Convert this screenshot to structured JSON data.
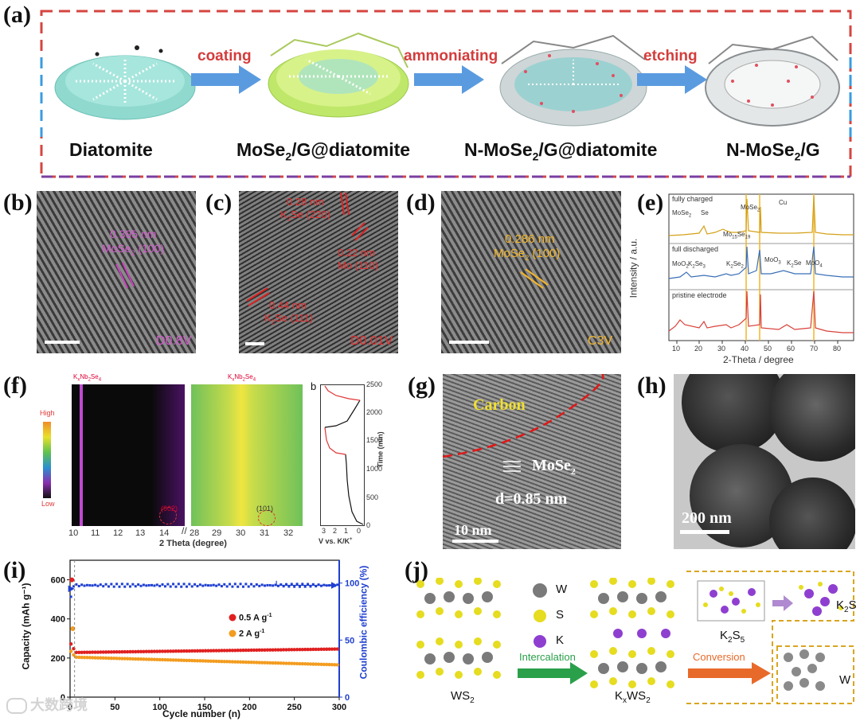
{
  "panel_labels": {
    "a": "(a)",
    "b": "(b)",
    "c": "(c)",
    "d": "(d)",
    "e": "(e)",
    "f": "(f)",
    "g": "(g)",
    "h": "(h)",
    "i": "(i)",
    "j": "(j)"
  },
  "panel_a": {
    "arrows": [
      "coating",
      "ammoniating",
      "etching"
    ],
    "stages": {
      "s1": {
        "main": "Diatomite"
      },
      "s2": {
        "pre": "MoSe",
        "sub": "2",
        "post": "/G@diatomite"
      },
      "s3": {
        "pre": "N-MoSe",
        "sub": "2",
        "post": "/G@diatomite"
      },
      "s4": {
        "pre": "N-MoSe",
        "sub": "2",
        "post": "/G"
      }
    }
  },
  "panel_b": {
    "spacing": "0.395 nm",
    "plane_pre": "MoSe",
    "plane_sub": "2",
    "plane_post": " (100)",
    "voltage": "D0.8V"
  },
  "panel_c": {
    "a1": "0.28 nm",
    "a1b_pre": "K",
    "a1b_sub": "2",
    "a1b_post": "Se (220)",
    "a2": "0.22 nm",
    "a2b": "Mo (110)",
    "a3": "0.44 nm",
    "a3b_pre": "K",
    "a3b_sub": "2",
    "a3b_post": "Se (111)",
    "voltage": "D0.01V"
  },
  "panel_d": {
    "spacing": "0.286 nm",
    "plane_pre": "MoSe",
    "plane_sub": "2",
    "plane_post": " (100)",
    "voltage": "C3V"
  },
  "panel_e": {
    "ylabel": "Intensity / a.u.",
    "xlabel": "2-Theta / degree",
    "xticks": [
      "10",
      "20",
      "30",
      "40",
      "50",
      "60",
      "70",
      "80"
    ],
    "traces": [
      "fully charged",
      "full discharged",
      "pristine electrode"
    ],
    "annotations": {
      "mose2_left": "MoSe",
      "mose2_left_sub": "2",
      "se": "Se",
      "mose2_mid": "MoSe",
      "mose2_mid_sub": "2",
      "cu": "Cu",
      "mo15": "Mo",
      "mo15_sub": "15",
      "mo15_b": "Se",
      "mo15_b_sub": "19",
      "moo2": "MoO",
      "moo2_sub": "2",
      "k2se3": "K",
      "k2se3_sub": "2",
      "k2se3_b": "Se",
      "k2se3_b_sub": "3",
      "k2se2": "K",
      "k2se2_sub": "2",
      "k2se2_b": "Se",
      "k2se2_b_sub": "2",
      "moo3": "MoO",
      "moo3_sub": "3",
      "k2se": "K",
      "k2se_sub": "2",
      "k2se_b": "Se",
      "moo4": "MoO",
      "moo4_sub": "4"
    },
    "colors": {
      "charged": "#d4a017",
      "discharged": "#3b6fb6",
      "pristine": "#d8403a"
    }
  },
  "panel_f": {
    "left_title_pre": "K",
    "left_title_sub": "x",
    "left_title_mid": "Nb",
    "left_title_sub2": "2",
    "left_title_post": "Se",
    "left_title_sub3": "4",
    "colorbar_high": "High",
    "colorbar_low": "Low",
    "xlabel": "2 Theta (degree)",
    "xticks_left": [
      "10",
      "11",
      "12",
      "13",
      "14"
    ],
    "xticks_right": [
      "28",
      "29",
      "30",
      "31",
      "32"
    ],
    "peak_left": "(002)",
    "peak_right": "(101)",
    "b_label": "b",
    "time_label": "Time (min)",
    "time_ticks": [
      "0",
      "500",
      "1000",
      "1500",
      "2000",
      "2500"
    ],
    "v_ticks": [
      "3",
      "2",
      "1",
      "0"
    ],
    "v_label_pre": "V vs. K/K",
    "v_label_sup": "+"
  },
  "panel_g": {
    "carbon": "Carbon",
    "mose2_pre": "MoSe",
    "mose2_sub": "2",
    "spacing": "d=0.85 nm",
    "scale": "10 nm"
  },
  "panel_h": {
    "scale": "200 nm"
  },
  "panel_i": {
    "ylabel_left": "Capacity (mAh g⁻¹)",
    "ylabel_right": "Coulombic efficiency (%)",
    "xlabel": "Cycle number (n)",
    "xticks": [
      "0",
      "50",
      "100",
      "150",
      "200",
      "250",
      "300"
    ],
    "yticks_left": [
      "0",
      "200",
      "400",
      "600"
    ],
    "yticks_right": [
      "0",
      "50",
      "100"
    ],
    "legend": [
      {
        "pre": "0.5 A g",
        "sup": "-1",
        "color": "#e02020"
      },
      {
        "pre": "2 A g",
        "sup": "-1",
        "color": "#f39c1f"
      }
    ],
    "ce_color": "#1f3fd0"
  },
  "panel_j": {
    "legend": [
      "W",
      "S",
      "K"
    ],
    "ws2_pre": "WS",
    "ws2_sub": "2",
    "intercalation": "Intercalation",
    "kxws2_a": "K",
    "kxws2_sub": "x",
    "kxws2_b": "WS",
    "kxws2_sub2": "2",
    "conversion": "Conversion",
    "k2s5_a": "K",
    "k2s5_sub": "2",
    "k2s5_b": "S",
    "k2s5_sub2": "5",
    "k2s_a": "K",
    "k2s_sub": "2",
    "k2s_b": "S",
    "w": "W"
  },
  "watermark": "大数跨境"
}
